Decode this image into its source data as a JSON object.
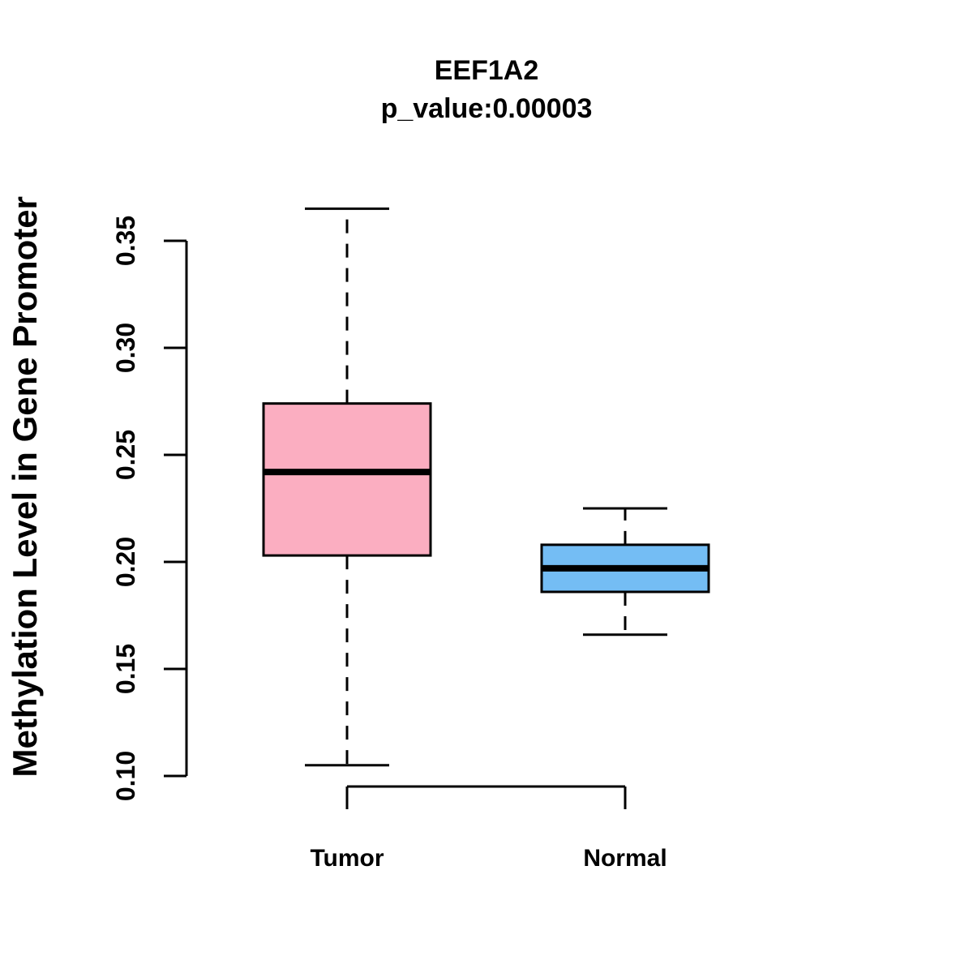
{
  "page": {
    "background_color": "#ffffff",
    "text_color": "#000000"
  },
  "chart_data": {
    "type": "boxplot",
    "title": "EEF1A2",
    "subtitle": "p_value:0.00003",
    "ylabel": "Methylation Level in Gene Promoter",
    "xlabel": "",
    "ylim": [
      0.1,
      0.35
    ],
    "y_ticks": [
      "0.10",
      "0.15",
      "0.20",
      "0.25",
      "0.30",
      "0.35"
    ],
    "grid": false,
    "legend": "none",
    "categories": [
      "Tumor",
      "Normal"
    ],
    "series": [
      {
        "name": "Tumor",
        "color": "#FBAEC1",
        "lower_whisker": 0.105,
        "q1": 0.203,
        "median": 0.242,
        "q3": 0.274,
        "upper_whisker": 0.365
      },
      {
        "name": "Normal",
        "color": "#74BDF4",
        "lower_whisker": 0.166,
        "q1": 0.186,
        "median": 0.197,
        "q3": 0.208,
        "upper_whisker": 0.225
      }
    ],
    "style": {
      "axis_color": "#000000",
      "box_border_color": "#000000",
      "median_color": "#000000",
      "whisker_style": "dashed"
    }
  }
}
